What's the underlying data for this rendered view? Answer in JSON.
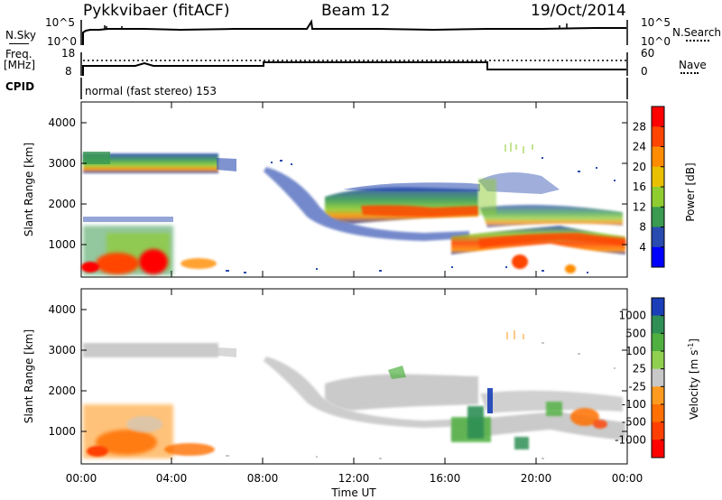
{
  "header": {
    "title": "Pykkvibaer (fitACF)",
    "beam": "Beam 12",
    "date": "19/Oct/2014"
  },
  "panels": {
    "nsky": {
      "left_label": "N.Sky",
      "right_label": "N.Search",
      "left_ticks": [
        "10^5",
        "10^0"
      ],
      "right_ticks": [
        "10^5",
        "10^0"
      ]
    },
    "freq": {
      "left_label_line1": "Freq.",
      "left_label_line2": "[MHz]",
      "right_label": "Nave",
      "left_ticks": [
        "18",
        "8"
      ],
      "right_ticks": [
        "60",
        "0"
      ]
    },
    "cpid": {
      "label": "CPID",
      "mode_text": "normal (fast stereo) 153"
    }
  },
  "colorbars": {
    "power": {
      "label": "Power [dB]",
      "ticks": [
        "28",
        "24",
        "20",
        "16",
        "12",
        "8",
        "4"
      ],
      "colors": [
        "#ff0000",
        "#ff4500",
        "#ff8c00",
        "#e8c000",
        "#8fcc30",
        "#3a9a50",
        "#2a4bb0",
        "#0000ff"
      ]
    },
    "velocity": {
      "label": "Velocity [m s",
      "label_sup": "-1",
      "label_close": "]",
      "ticks": [
        "1000",
        "500",
        "100",
        "25",
        "-25",
        "-100",
        "-500",
        "-1000"
      ],
      "colors": [
        "#1a3fb8",
        "#2f8f55",
        "#4fb040",
        "#90d050",
        "#c8c8c8",
        "#ff9a20",
        "#ff7000",
        "#ff4000",
        "#ff0000"
      ]
    }
  },
  "chart_data": [
    {
      "type": "heatmap",
      "name": "power",
      "ylabel": "Slant Range [km]",
      "y_ticks": [
        "4000",
        "3000",
        "2000",
        "1000"
      ],
      "ylim": [
        180,
        4600
      ],
      "x_ticks": [
        "00:00",
        "04:00",
        "08:00",
        "12:00",
        "16:00",
        "20:00",
        "00:00"
      ],
      "xlim_hours": [
        0,
        24
      ]
    },
    {
      "type": "heatmap",
      "name": "velocity",
      "ylabel": "Slant Range [km]",
      "y_ticks": [
        "4000",
        "3000",
        "2000",
        "1000"
      ],
      "ylim": [
        180,
        4600
      ],
      "x_ticks": [
        "00:00",
        "04:00",
        "08:00",
        "12:00",
        "16:00",
        "20:00",
        "00:00"
      ],
      "xlim_hours": [
        0,
        24
      ],
      "xlabel": "Time UT"
    }
  ]
}
